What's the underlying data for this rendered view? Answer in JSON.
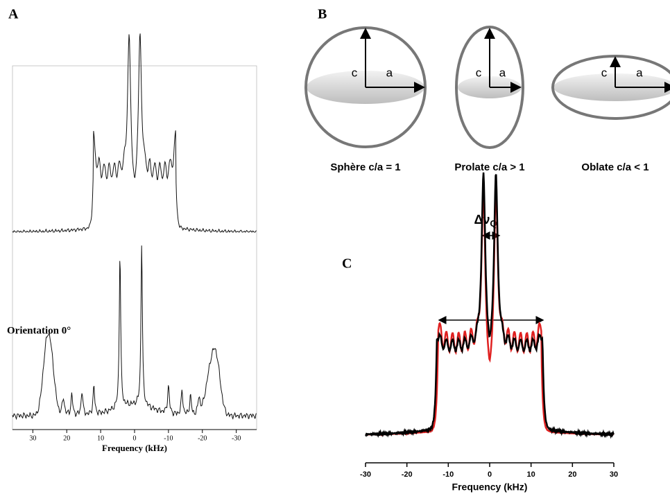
{
  "panel_a": {
    "label": "A",
    "annotation": "Orientation 0°",
    "xlabel": "Frequency (kHz)",
    "xlim": [
      36,
      -36
    ],
    "xticks": [
      30,
      20,
      10,
      0,
      -10,
      -20,
      -30
    ]
  },
  "panel_b": {
    "label": "B",
    "shapes": [
      {
        "c": "c",
        "a": "a",
        "caption": "Sphère c/a = 1"
      },
      {
        "c": "c",
        "a": "a",
        "caption": "Prolate c/a > 1"
      },
      {
        "c": "c",
        "a": "a",
        "caption": "Oblate c/a < 1"
      }
    ]
  },
  "panel_c": {
    "label": "C",
    "annotation": "Δν",
    "annotation_sub": "Q",
    "xlabel": "Frequency (kHz)",
    "xlim": [
      -30,
      30
    ],
    "xticks": [
      -30,
      -20,
      -10,
      0,
      10,
      20,
      30
    ]
  }
}
